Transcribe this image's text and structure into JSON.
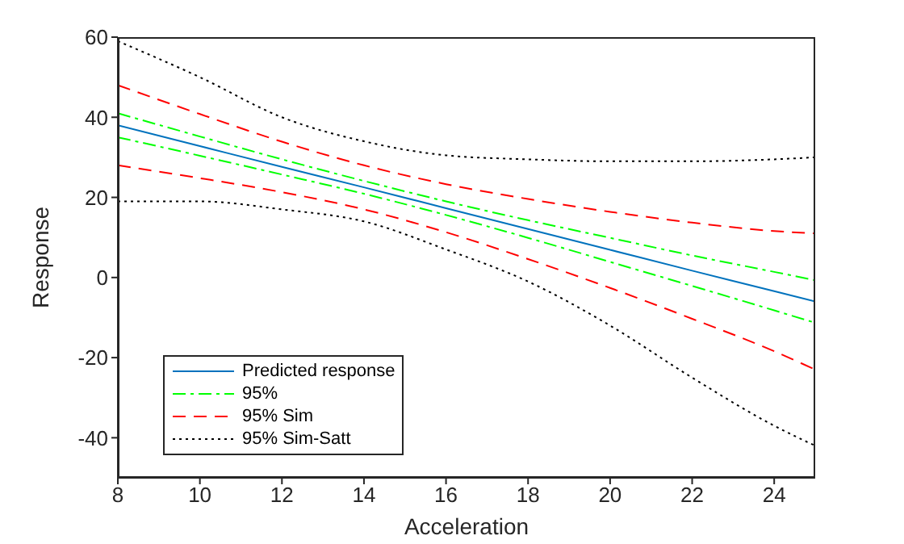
{
  "chart_data": {
    "type": "line",
    "xlabel": "Acceleration",
    "ylabel": "Response",
    "x": [
      8,
      10,
      12,
      14,
      16,
      18,
      20,
      22,
      24,
      25
    ],
    "xlim": [
      8,
      25
    ],
    "xticks": [
      8,
      10,
      12,
      14,
      16,
      18,
      20,
      22,
      24
    ],
    "ylim": [
      -50,
      60
    ],
    "yticks": [
      -40,
      -20,
      0,
      20,
      40,
      60
    ],
    "legend": "bottom left",
    "marker": "none",
    "series": [
      {
        "name": "Predicted response",
        "color": "#0072bd",
        "line_style": "solid",
        "values": [
          38,
          32.8,
          27.6,
          22.5,
          17.3,
          12.1,
          6.9,
          1.7,
          -3.4,
          -6
        ]
      },
      {
        "name": "95%",
        "color": "#00ff00",
        "line_style": "dashdot",
        "values": [
          41,
          35.2,
          29.5,
          24.1,
          19,
          14.3,
          9.9,
          5.5,
          1.4,
          -0.7
        ]
      },
      {
        "color": "#00ff00",
        "line_style": "dashdot",
        "values": [
          35,
          30.4,
          25.7,
          20.9,
          15.6,
          9.9,
          3.9,
          -2.1,
          -8.2,
          -11.3
        ]
      },
      {
        "name": "95% Sim",
        "color": "#ff0000",
        "line_style": "dashed",
        "values": [
          48,
          40.8,
          33.9,
          28,
          23.3,
          19.6,
          16.4,
          13.7,
          11.6,
          11
        ]
      },
      {
        "color": "#ff0000",
        "line_style": "dashed",
        "values": [
          28,
          24.8,
          21.3,
          17,
          11.3,
          4.6,
          -2.6,
          -10.3,
          -18.4,
          -23
        ]
      },
      {
        "name": "95% Sim-Satt",
        "color": "#000000",
        "line_style": "dotted",
        "values": [
          59,
          50,
          40,
          34,
          30.5,
          29.5,
          29,
          29,
          29.5,
          30
        ]
      },
      {
        "color": "#000000",
        "line_style": "dotted",
        "values": [
          19,
          19,
          17,
          14,
          7,
          -1,
          -12,
          -25,
          -37,
          -42
        ]
      }
    ]
  }
}
